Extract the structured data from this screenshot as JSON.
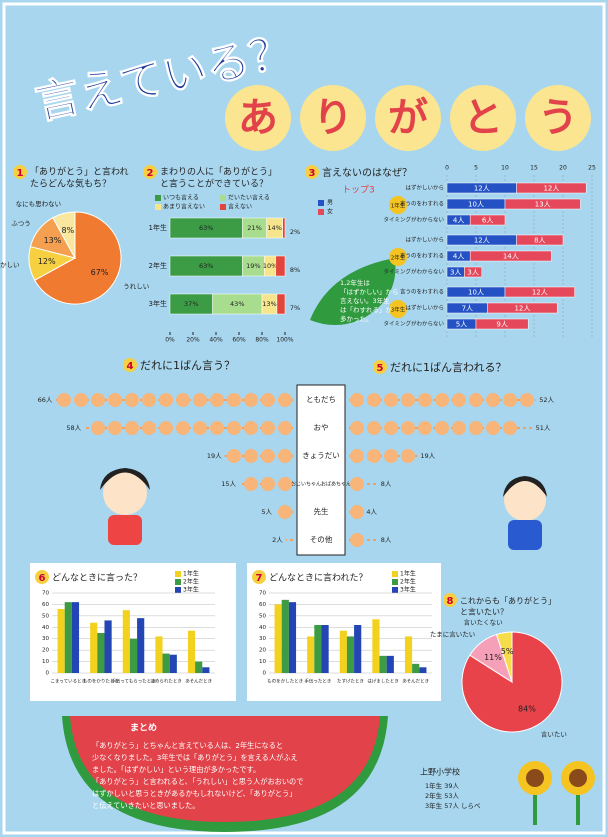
{
  "title": {
    "line1": "言えている？",
    "line2": [
      "あ",
      "り",
      "が",
      "と",
      "う"
    ]
  },
  "q1": {
    "number": "1",
    "title": [
      "「ありがとう」と言われ",
      "たらどんな気もち？"
    ],
    "labels": [
      "うれしい",
      "はずかしい",
      "ふつう",
      "なにも思わない"
    ],
    "values": [
      67,
      12,
      13,
      8
    ],
    "value_labels": [
      "67%",
      "12%",
      "13%",
      "8%"
    ],
    "colors": [
      "#f07a30",
      "#f6d040",
      "#f4a050",
      "#f9e7a0"
    ]
  },
  "q2": {
    "number": "2",
    "title": [
      "まわりの人に「ありがとう」",
      "と言うことができている？"
    ],
    "categories": [
      "1年生",
      "2年生",
      "3年生"
    ],
    "series": [
      {
        "name": "いつも言える",
        "color": "#3c9c46",
        "values": [
          63,
          63,
          37
        ],
        "value_labels": [
          "63%",
          "63%",
          "37%"
        ]
      },
      {
        "name": "だいたい言える",
        "color": "#a9dd8e",
        "values": [
          21,
          19,
          43
        ],
        "value_labels": [
          "21%",
          "19%",
          "43%"
        ]
      },
      {
        "name": "あまり言えない",
        "color": "#f6e58a",
        "values": [
          14,
          10,
          13
        ],
        "value_labels": [
          "14%",
          "10%",
          "13%"
        ]
      },
      {
        "name": "言えない",
        "color": "#e2453c",
        "values": [
          2,
          8,
          7
        ],
        "value_labels": [
          "2%",
          "8%",
          "7%"
        ]
      }
    ],
    "xlim": [
      0,
      100
    ],
    "xticks": [
      {
        "value": 0,
        "label": "0%"
      },
      {
        "value": 20,
        "label": "20%"
      },
      {
        "value": 40,
        "label": "40%"
      },
      {
        "value": 60,
        "label": "60%"
      },
      {
        "value": 80,
        "label": "80%"
      },
      {
        "value": 100,
        "label": "100%"
      }
    ]
  },
  "q3": {
    "number": "3",
    "title": "言えないのはなぜ？",
    "subtitle": "トップ3",
    "groups": [
      "1年生",
      "2年生",
      "3年生"
    ],
    "reasons": [
      "はずかしいから",
      "言うのをわすれる",
      "タイミングがわからない",
      "はずかしいから",
      "言うのをわすれる",
      "タイミングがわからない",
      "言うのをわすれる",
      "はずかしいから",
      "タイミングがわからない"
    ],
    "series": [
      {
        "name": "男",
        "color": "#2452c4",
        "values": [
          12,
          10,
          4,
          12,
          4,
          3,
          10,
          7,
          5
        ],
        "value_labels": [
          "12人",
          "10人",
          "4人",
          "12人",
          "4人",
          "3人",
          "10人",
          "7人",
          "5人"
        ]
      },
      {
        "name": "女",
        "color": "#e4485a",
        "values": [
          12,
          13,
          6,
          8,
          14,
          3,
          12,
          12,
          9
        ],
        "value_labels": [
          "12人",
          "13人",
          "6人",
          "8人",
          "14人",
          "3人",
          "12人",
          "12人",
          "9人"
        ]
      }
    ],
    "xlim": [
      0,
      25
    ],
    "xticks": [
      0,
      5,
      10,
      15,
      20,
      25
    ],
    "note": [
      "1,2年生は",
      "「はずかしい」から",
      "言えない。3年生",
      "は「わすれる」が",
      "多かった。"
    ]
  },
  "q45": {
    "people": [
      "ともだち",
      "おや",
      "きょうだい",
      "おじいちゃんおばあちゃん",
      "先生",
      "その他"
    ],
    "q4": {
      "number": "4",
      "title": "だれに1ばん言う？",
      "values": [
        66,
        58,
        19,
        15,
        5,
        2
      ],
      "value_labels": [
        "66人",
        "58人",
        "19人",
        "15人",
        "5人",
        "2人"
      ]
    },
    "q5": {
      "number": "5",
      "title": "だれに1ばん言われる？",
      "values": [
        52,
        51,
        19,
        8,
        4,
        8
      ],
      "value_labels": [
        "52人",
        "51人",
        "19人",
        "8人",
        "4人",
        "8人"
      ]
    }
  },
  "q6": {
    "number": "6",
    "title": "どんなときに言った？",
    "categories": [
      "こまっているとき",
      "ものをかりたとき",
      "手伝ってもらったとき",
      "ほめられたとき",
      "あそんだとき"
    ],
    "series": [
      {
        "name": "1年生",
        "color": "#f2d21e",
        "values": [
          56,
          44,
          55,
          32,
          37
        ]
      },
      {
        "name": "2年生",
        "color": "#3d9c43",
        "values": [
          62,
          35,
          30,
          17,
          10
        ]
      },
      {
        "name": "3年生",
        "color": "#2446b4",
        "values": [
          62,
          46,
          48,
          16,
          5
        ]
      }
    ],
    "ylim": [
      0,
      70
    ],
    "yticks": [
      0,
      10,
      20,
      30,
      40,
      50,
      60,
      70
    ]
  },
  "q7": {
    "number": "7",
    "title": "どんなときに言われた？",
    "categories": [
      "ものをかしたとき",
      "手伝ったとき",
      "たすけたとき",
      "はげましたとき",
      "あそんだとき"
    ],
    "series": [
      {
        "name": "1年生",
        "color": "#f2d21e",
        "values": [
          60,
          32,
          37,
          47,
          32
        ]
      },
      {
        "name": "2年生",
        "color": "#3d9c43",
        "values": [
          64,
          42,
          32,
          15,
          8
        ]
      },
      {
        "name": "3年生",
        "color": "#2446b4",
        "values": [
          62,
          42,
          42,
          15,
          5
        ]
      }
    ],
    "ylim": [
      0,
      70
    ],
    "yticks": [
      0,
      10,
      20,
      30,
      40,
      50,
      60,
      70
    ]
  },
  "q8": {
    "number": "8",
    "title": [
      "これからも「ありがとう」",
      "と言いたい？"
    ],
    "labels": [
      "言いたい",
      "たまに言いたい",
      "言いたくない"
    ],
    "values": [
      84,
      11,
      5
    ],
    "value_labels": [
      "84%",
      "11%",
      "5%"
    ],
    "colors": [
      "#e8434a",
      "#f5a0b8",
      "#f6dc4a"
    ]
  },
  "summary": {
    "title": "まとめ",
    "lines": [
      "「ありがとう」とちゃんと言えている人は、2年生になると",
      "少なくなりました。3年生では「ありがとう」を言える人がふえ",
      "ました。「はずかしい」という理由が多かったです。",
      "「ありがとう」と言われると、「うれしい」と思う人がおおいので",
      "はずかしいと思うときがあるかもしれないけど、「ありがとう」",
      "と伝えていきたいと思いました。"
    ]
  },
  "footer": {
    "school": "上野小学校",
    "counts": [
      "1年生 39人",
      "2年生 53人",
      "3年生 57人 しらべ"
    ]
  }
}
